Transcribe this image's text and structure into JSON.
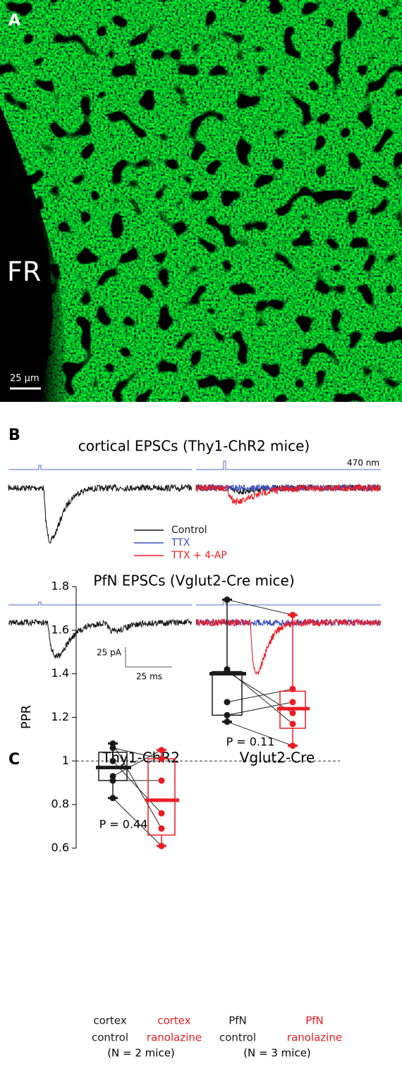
{
  "panel_a": {
    "label": "A",
    "region": "FR",
    "scale_bar": "25 µm"
  },
  "panel_b": {
    "label": "B",
    "top_title": "cortical EPSCs (Thy1-ChR2 mice)",
    "stimulus": "470 nm",
    "bottom_title": "PfN EPSCs (Vglut2-Cre mice)",
    "legend": [
      {
        "name": "Control",
        "color": "#1a1a1a"
      },
      {
        "name": "TTX",
        "color": "#3a4fc0"
      },
      {
        "name": "TTX + 4-AP",
        "color": "#ec1c24"
      }
    ],
    "scale_y": "25 pA",
    "scale_x": "25 ms"
  },
  "chart_data": {
    "type": "box",
    "label": "C",
    "ylabel": "PPR",
    "ylim": [
      0.6,
      1.8
    ],
    "yticks": [
      0.6,
      0.8,
      1,
      1.2,
      1.4,
      1.6,
      1.8
    ],
    "hline": 1,
    "groups": [
      {
        "title": "Thy1-ChR2",
        "note": "(N = 2 mice)",
        "p_value": "P = 0.44"
      },
      {
        "title": "Vglut2-Cre",
        "note": "(N = 3 mice)",
        "p_value": "P = 0.11"
      }
    ],
    "categories": [
      [
        "cortex",
        "control"
      ],
      [
        "cortex",
        "ranolazine"
      ],
      [
        "PfN",
        "control"
      ],
      [
        "PfN",
        "ranolazine"
      ]
    ],
    "boxes": [
      {
        "color": "#1a1a1a",
        "whislo": 0.83,
        "q1": 0.91,
        "median": 0.97,
        "q3": 1.04,
        "whishi": 1.08,
        "points": [
          1.08,
          1.06,
          1.0,
          0.93,
          0.91,
          0.83
        ]
      },
      {
        "color": "#ec1c24",
        "whislo": 0.61,
        "q1": 0.66,
        "median": 0.82,
        "q3": 1.01,
        "whishi": 1.05,
        "points": [
          0.69,
          1.01,
          0.76,
          1.05,
          0.91,
          0.61
        ]
      },
      {
        "color": "#1a1a1a",
        "whislo": 1.18,
        "q1": 1.21,
        "median": 1.4,
        "q3": 1.41,
        "whishi": 1.74,
        "points": [
          1.74,
          1.42,
          1.41,
          1.27,
          1.21,
          1.18
        ]
      },
      {
        "color": "#ec1c24",
        "whislo": 1.07,
        "q1": 1.15,
        "median": 1.24,
        "q3": 1.32,
        "whishi": 1.67,
        "points": [
          1.67,
          1.17,
          1.22,
          1.33,
          1.27,
          1.07
        ]
      }
    ]
  }
}
